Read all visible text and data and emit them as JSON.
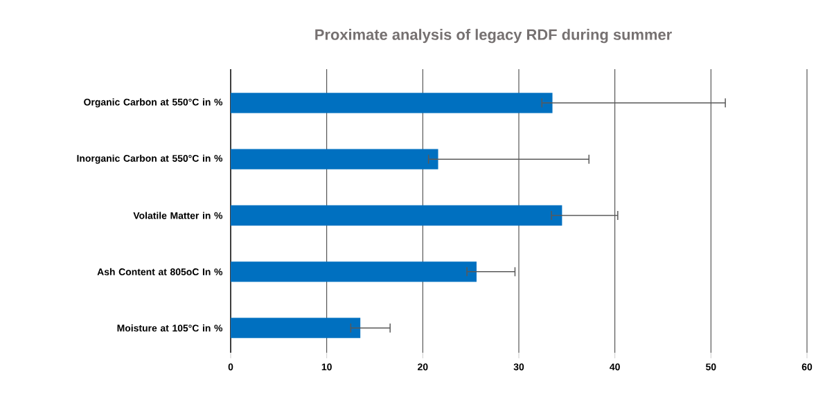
{
  "chart_data": {
    "type": "bar",
    "orientation": "horizontal",
    "title": "Proximate analysis of legacy RDF during summer",
    "categories": [
      "Organic Carbon at 550°C in %",
      "Inorganic Carbon at 550°C in %",
      "Volatile Matter in %",
      "Ash Content at 805oC In %",
      "Moisture at 105°C in %"
    ],
    "values": [
      33.5,
      21.6,
      34.5,
      25.6,
      13.5
    ],
    "errors": [
      [
        32.4,
        51.5
      ],
      [
        20.6,
        37.3
      ],
      [
        33.4,
        40.3
      ],
      [
        24.6,
        29.6
      ],
      [
        12.5,
        16.6
      ]
    ],
    "color": "#0070c0",
    "xlim": [
      0,
      60
    ],
    "xticks": [
      0,
      10,
      20,
      30,
      40,
      50,
      60
    ],
    "grid": "x"
  }
}
